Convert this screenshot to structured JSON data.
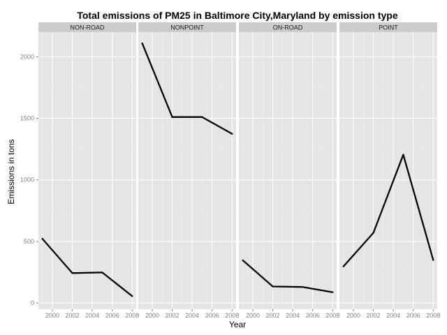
{
  "chart_data": {
    "type": "line",
    "title": "Total emissions of PM25 in Baltimore City,Maryland by emission type",
    "xlabel": "Year",
    "ylabel": "Emissions in tons",
    "x": [
      1999,
      2002,
      2005,
      2008
    ],
    "x_ticks": [
      2000,
      2002,
      2004,
      2006,
      2008
    ],
    "y_ticks": [
      0,
      500,
      1000,
      1500,
      2000
    ],
    "xlim": [
      1998.6,
      2008.4
    ],
    "ylim": [
      -50,
      2200
    ],
    "grid": true,
    "facet_layout": "1x4 small multiples",
    "line_color": "#000000",
    "panel_background": "#e5e5e5",
    "strip_background": "#cccccc",
    "series": [
      {
        "name": "NON-ROAD",
        "values": [
          522,
          243,
          248,
          56
        ]
      },
      {
        "name": "NONPOINT",
        "values": [
          2108,
          1510,
          1510,
          1374
        ]
      },
      {
        "name": "ON-ROAD",
        "values": [
          347,
          134,
          130,
          88
        ]
      },
      {
        "name": "POINT",
        "values": [
          297,
          570,
          1204,
          349
        ]
      }
    ]
  }
}
